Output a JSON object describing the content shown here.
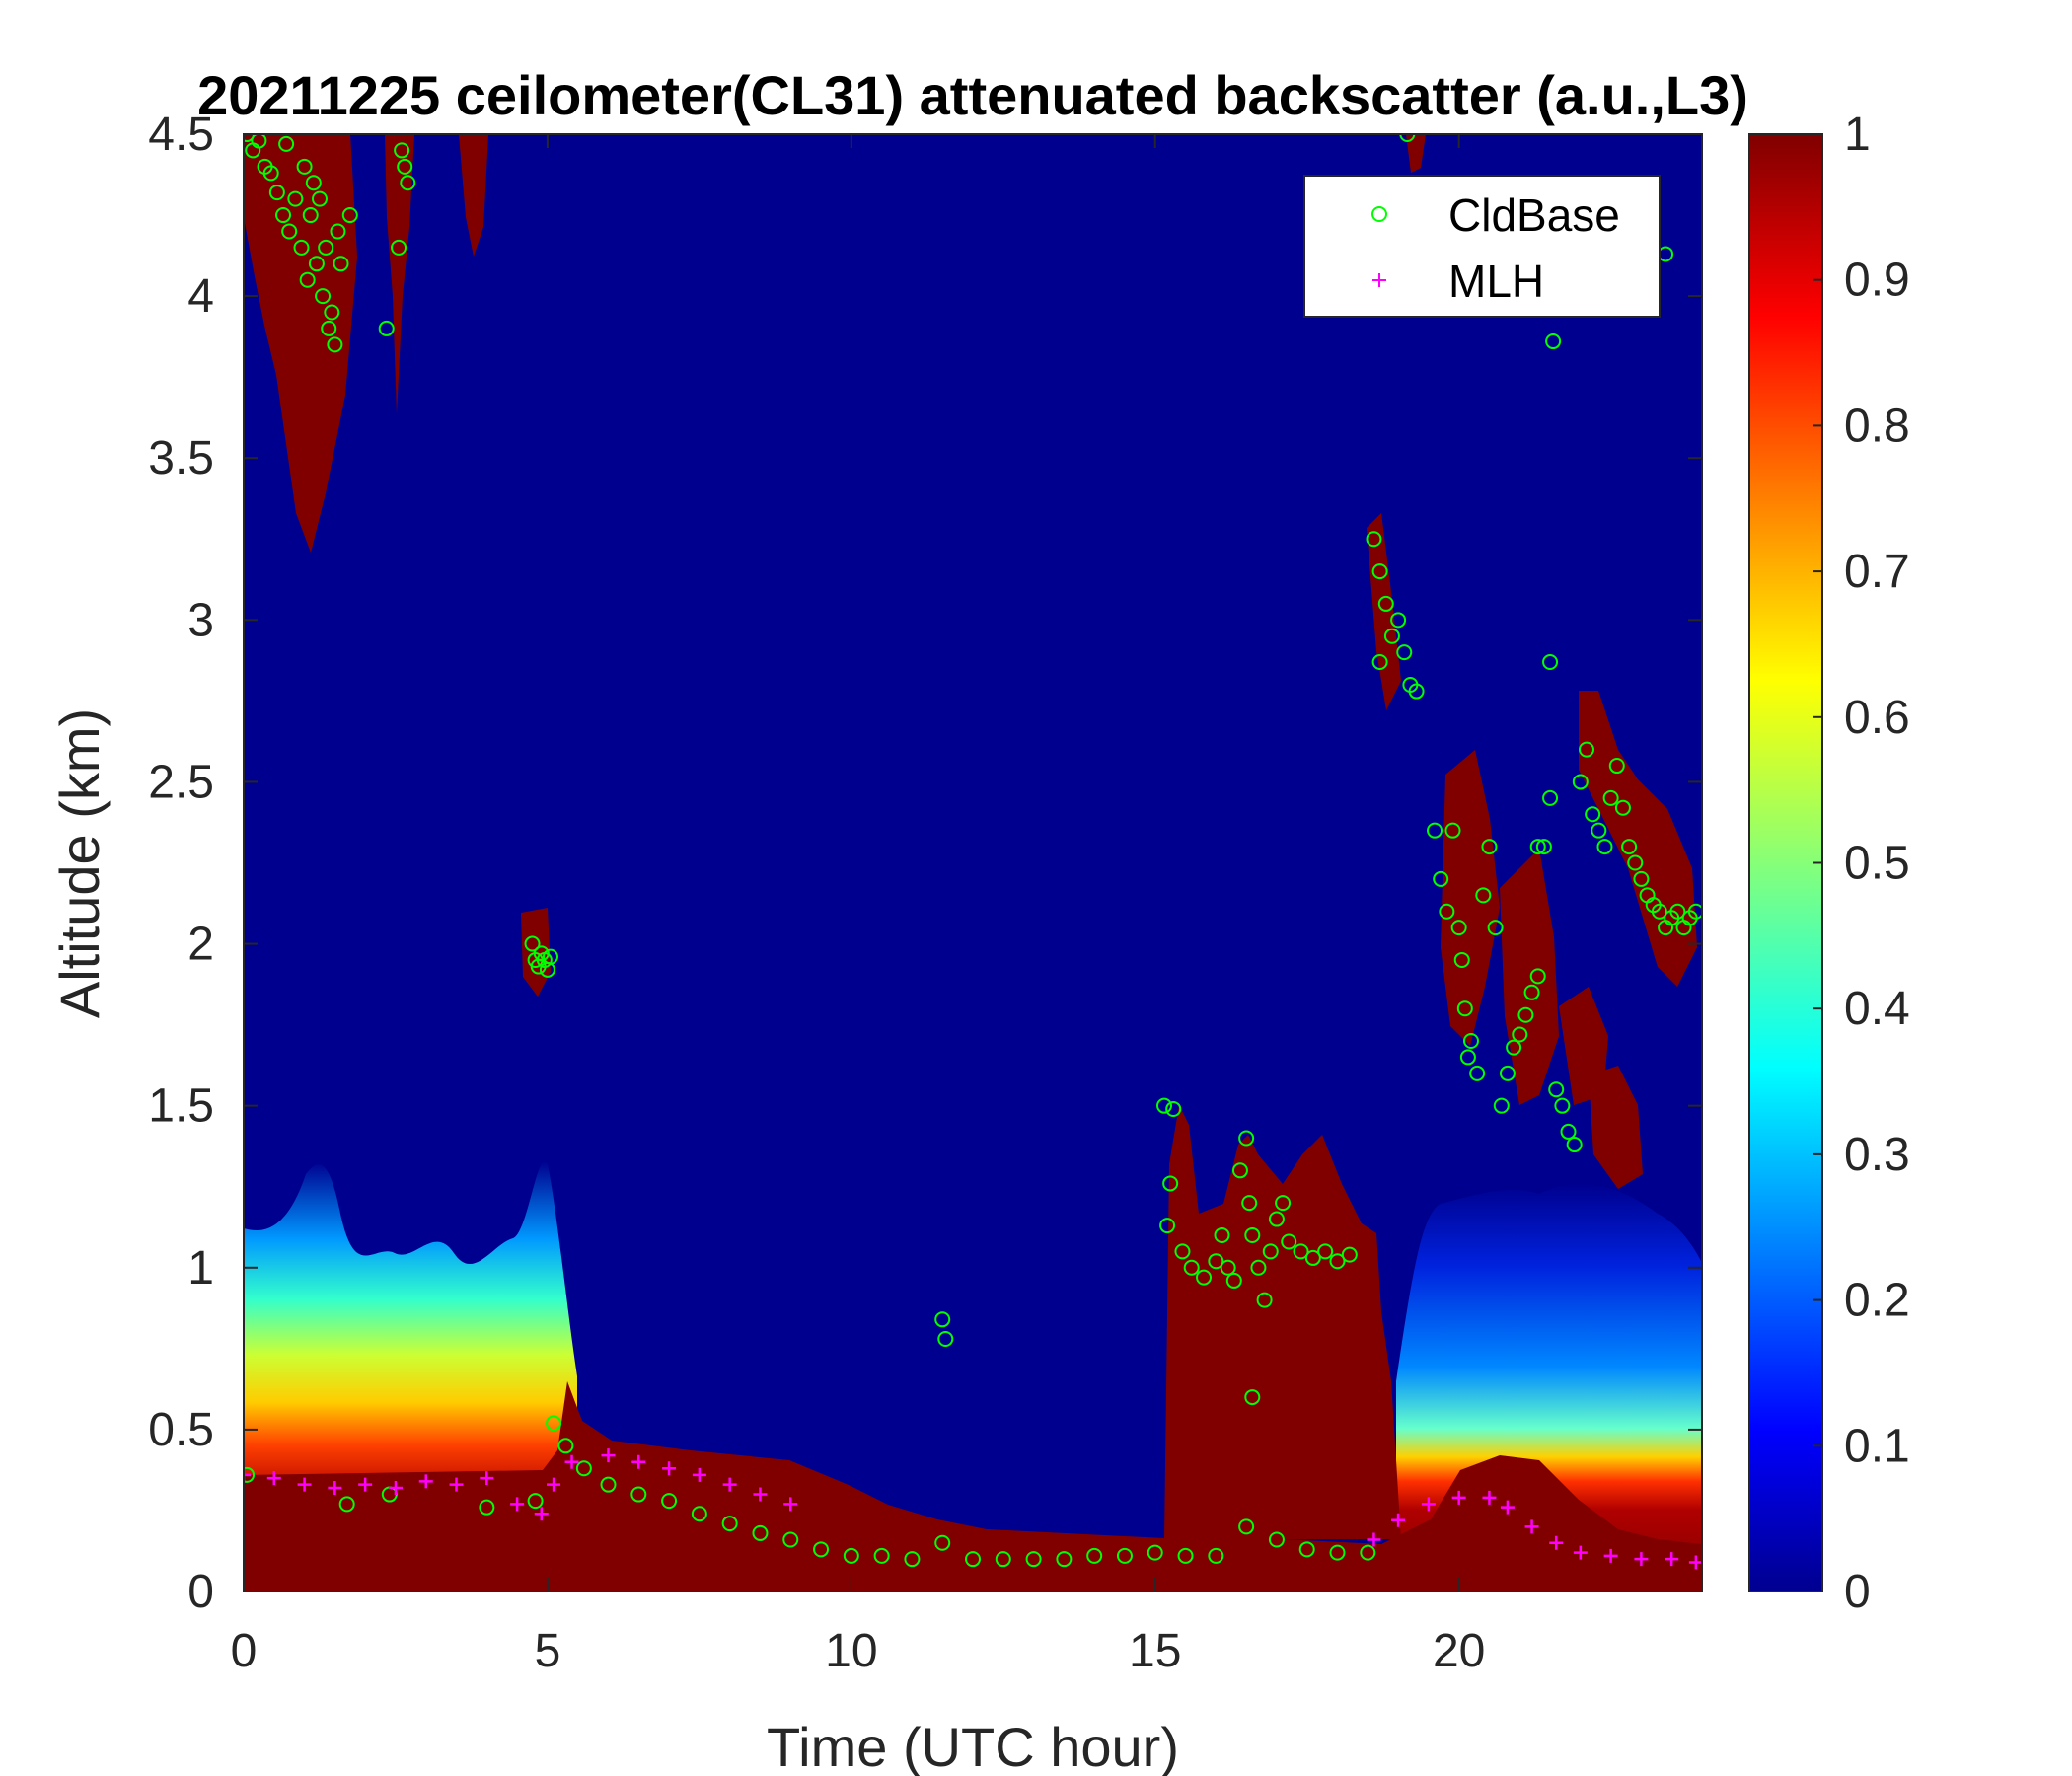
{
  "chart_data": {
    "type": "heatmap",
    "title": "20211225 ceilometer(CL31) attenuated backscatter (a.u.,L3)",
    "xlabel": "Time (UTC hour)",
    "ylabel": "Altitude (km)",
    "xlim": [
      0,
      24
    ],
    "ylim": [
      0,
      4.5
    ],
    "xticks": [
      "0",
      "5",
      "10",
      "15",
      "20"
    ],
    "xtick_values": [
      0,
      5,
      10,
      15,
      20
    ],
    "yticks": [
      "0",
      "0.5",
      "1",
      "1.5",
      "2",
      "2.5",
      "3",
      "3.5",
      "4",
      "4.5"
    ],
    "ytick_values": [
      0,
      0.5,
      1,
      1.5,
      2,
      2.5,
      3,
      3.5,
      4,
      4.5
    ],
    "colorbar": {
      "colormap": "jet",
      "range": [
        0,
        1
      ],
      "ticks": [
        "0",
        "0.1",
        "0.2",
        "0.3",
        "0.4",
        "0.5",
        "0.6",
        "0.7",
        "0.8",
        "0.9",
        "1"
      ],
      "tick_values": [
        0,
        0.1,
        0.2,
        0.3,
        0.4,
        0.5,
        0.6,
        0.7,
        0.8,
        0.9,
        1
      ]
    },
    "legend": {
      "placement": "top-right"
    },
    "series": [
      {
        "name": "CldBase",
        "marker": "circle",
        "color": "#00ff00",
        "points": [
          [
            0.05,
            4.5
          ],
          [
            0.15,
            4.45
          ],
          [
            0.25,
            4.48
          ],
          [
            0.35,
            4.4
          ],
          [
            0.45,
            4.38
          ],
          [
            0.55,
            4.32
          ],
          [
            0.65,
            4.25
          ],
          [
            0.75,
            4.2
          ],
          [
            0.85,
            4.3
          ],
          [
            0.95,
            4.15
          ],
          [
            1.0,
            4.4
          ],
          [
            1.05,
            4.05
          ],
          [
            1.1,
            4.25
          ],
          [
            1.15,
            4.35
          ],
          [
            1.2,
            4.1
          ],
          [
            1.25,
            4.3
          ],
          [
            1.3,
            4.0
          ],
          [
            1.35,
            4.15
          ],
          [
            1.4,
            3.9
          ],
          [
            1.45,
            3.95
          ],
          [
            1.5,
            3.85
          ],
          [
            1.55,
            4.2
          ],
          [
            1.6,
            4.1
          ],
          [
            1.75,
            4.25
          ],
          [
            2.35,
            3.9
          ],
          [
            2.6,
            4.45
          ],
          [
            2.65,
            4.4
          ],
          [
            2.7,
            4.35
          ],
          [
            2.55,
            4.15
          ],
          [
            0.7,
            4.47
          ],
          [
            4.75,
            2.0
          ],
          [
            4.8,
            1.95
          ],
          [
            4.85,
            1.93
          ],
          [
            4.9,
            1.97
          ],
          [
            4.95,
            1.95
          ],
          [
            5.0,
            1.92
          ],
          [
            5.05,
            1.96
          ],
          [
            11.5,
            0.84
          ],
          [
            11.55,
            0.78
          ],
          [
            15.15,
            1.5
          ],
          [
            15.3,
            1.49
          ],
          [
            15.25,
            1.26
          ],
          [
            15.2,
            1.13
          ],
          [
            15.45,
            1.05
          ],
          [
            15.6,
            1.0
          ],
          [
            15.8,
            0.97
          ],
          [
            16.0,
            1.02
          ],
          [
            16.1,
            1.1
          ],
          [
            16.2,
            1.0
          ],
          [
            16.3,
            0.96
          ],
          [
            16.4,
            1.3
          ],
          [
            16.5,
            1.4
          ],
          [
            16.55,
            1.2
          ],
          [
            16.6,
            1.1
          ],
          [
            16.7,
            1.0
          ],
          [
            16.8,
            0.9
          ],
          [
            16.9,
            1.05
          ],
          [
            17.0,
            1.15
          ],
          [
            17.1,
            1.2
          ],
          [
            17.2,
            1.08
          ],
          [
            17.4,
            1.05
          ],
          [
            17.6,
            1.03
          ],
          [
            17.8,
            1.05
          ],
          [
            18.0,
            1.02
          ],
          [
            18.2,
            1.04
          ],
          [
            16.6,
            0.6
          ],
          [
            18.6,
            3.25
          ],
          [
            18.7,
            3.15
          ],
          [
            18.8,
            3.05
          ],
          [
            18.9,
            2.95
          ],
          [
            19.0,
            3.0
          ],
          [
            19.1,
            2.9
          ],
          [
            19.2,
            2.8
          ],
          [
            18.7,
            2.87
          ],
          [
            19.3,
            2.78
          ],
          [
            19.15,
            4.5
          ],
          [
            19.6,
            2.35
          ],
          [
            19.7,
            2.2
          ],
          [
            19.8,
            2.1
          ],
          [
            19.9,
            2.35
          ],
          [
            20.0,
            2.05
          ],
          [
            20.05,
            1.95
          ],
          [
            20.1,
            1.8
          ],
          [
            20.15,
            1.65
          ],
          [
            20.2,
            1.7
          ],
          [
            20.3,
            1.6
          ],
          [
            20.4,
            2.15
          ],
          [
            20.5,
            2.3
          ],
          [
            20.6,
            2.05
          ],
          [
            20.7,
            1.5
          ],
          [
            20.8,
            1.6
          ],
          [
            20.9,
            1.68
          ],
          [
            21.0,
            1.72
          ],
          [
            21.1,
            1.78
          ],
          [
            21.2,
            1.85
          ],
          [
            21.3,
            1.9
          ],
          [
            21.4,
            2.3
          ],
          [
            21.5,
            2.45
          ],
          [
            21.6,
            1.55
          ],
          [
            21.7,
            1.5
          ],
          [
            21.8,
            1.42
          ],
          [
            21.9,
            1.38
          ],
          [
            22.0,
            2.5
          ],
          [
            22.1,
            2.6
          ],
          [
            22.2,
            2.4
          ],
          [
            22.3,
            2.35
          ],
          [
            22.4,
            2.3
          ],
          [
            22.5,
            2.45
          ],
          [
            22.6,
            2.55
          ],
          [
            22.7,
            2.42
          ],
          [
            22.8,
            2.3
          ],
          [
            22.9,
            2.25
          ],
          [
            23.0,
            2.2
          ],
          [
            23.1,
            2.15
          ],
          [
            23.2,
            2.12
          ],
          [
            23.3,
            2.1
          ],
          [
            23.4,
            2.05
          ],
          [
            23.5,
            2.08
          ],
          [
            23.6,
            2.1
          ],
          [
            23.7,
            2.05
          ],
          [
            23.8,
            2.08
          ],
          [
            23.9,
            2.1
          ],
          [
            21.55,
            3.86
          ],
          [
            21.5,
            2.87
          ],
          [
            23.4,
            4.13
          ],
          [
            21.3,
            2.3
          ],
          [
            0.05,
            0.36
          ],
          [
            1.7,
            0.27
          ],
          [
            2.4,
            0.3
          ],
          [
            4.0,
            0.26
          ],
          [
            4.8,
            0.28
          ],
          [
            5.1,
            0.52
          ],
          [
            5.3,
            0.45
          ],
          [
            5.6,
            0.38
          ],
          [
            6.0,
            0.33
          ],
          [
            6.5,
            0.3
          ],
          [
            7.0,
            0.28
          ],
          [
            7.5,
            0.24
          ],
          [
            8.0,
            0.21
          ],
          [
            8.5,
            0.18
          ],
          [
            9.0,
            0.16
          ],
          [
            9.5,
            0.13
          ],
          [
            10.0,
            0.11
          ],
          [
            10.5,
            0.11
          ],
          [
            11.0,
            0.1
          ],
          [
            11.5,
            0.15
          ],
          [
            12.0,
            0.1
          ],
          [
            12.5,
            0.1
          ],
          [
            13.0,
            0.1
          ],
          [
            13.5,
            0.1
          ],
          [
            14.0,
            0.11
          ],
          [
            14.5,
            0.11
          ],
          [
            15.0,
            0.12
          ],
          [
            15.5,
            0.11
          ],
          [
            16.0,
            0.11
          ],
          [
            16.5,
            0.2
          ],
          [
            17.0,
            0.16
          ],
          [
            17.5,
            0.13
          ],
          [
            18.0,
            0.12
          ],
          [
            18.5,
            0.12
          ]
        ]
      },
      {
        "name": "MLH",
        "marker": "plus",
        "color": "#ff00ff",
        "points": [
          [
            0.0,
            0.36
          ],
          [
            0.5,
            0.35
          ],
          [
            1.0,
            0.33
          ],
          [
            1.5,
            0.32
          ],
          [
            2.0,
            0.33
          ],
          [
            2.5,
            0.32
          ],
          [
            3.0,
            0.34
          ],
          [
            3.5,
            0.33
          ],
          [
            4.0,
            0.35
          ],
          [
            4.5,
            0.27
          ],
          [
            4.9,
            0.24
          ],
          [
            5.1,
            0.33
          ],
          [
            5.4,
            0.4
          ],
          [
            6.0,
            0.42
          ],
          [
            6.5,
            0.4
          ],
          [
            7.0,
            0.38
          ],
          [
            7.5,
            0.36
          ],
          [
            8.0,
            0.33
          ],
          [
            8.5,
            0.3
          ],
          [
            9.0,
            0.27
          ],
          [
            18.6,
            0.16
          ],
          [
            19.0,
            0.22
          ],
          [
            19.5,
            0.27
          ],
          [
            20.0,
            0.29
          ],
          [
            20.5,
            0.29
          ],
          [
            20.8,
            0.26
          ],
          [
            21.2,
            0.2
          ],
          [
            21.6,
            0.15
          ],
          [
            22.0,
            0.12
          ],
          [
            22.5,
            0.11
          ],
          [
            23.0,
            0.1
          ],
          [
            23.5,
            0.1
          ],
          [
            23.9,
            0.09
          ]
        ]
      }
    ]
  }
}
